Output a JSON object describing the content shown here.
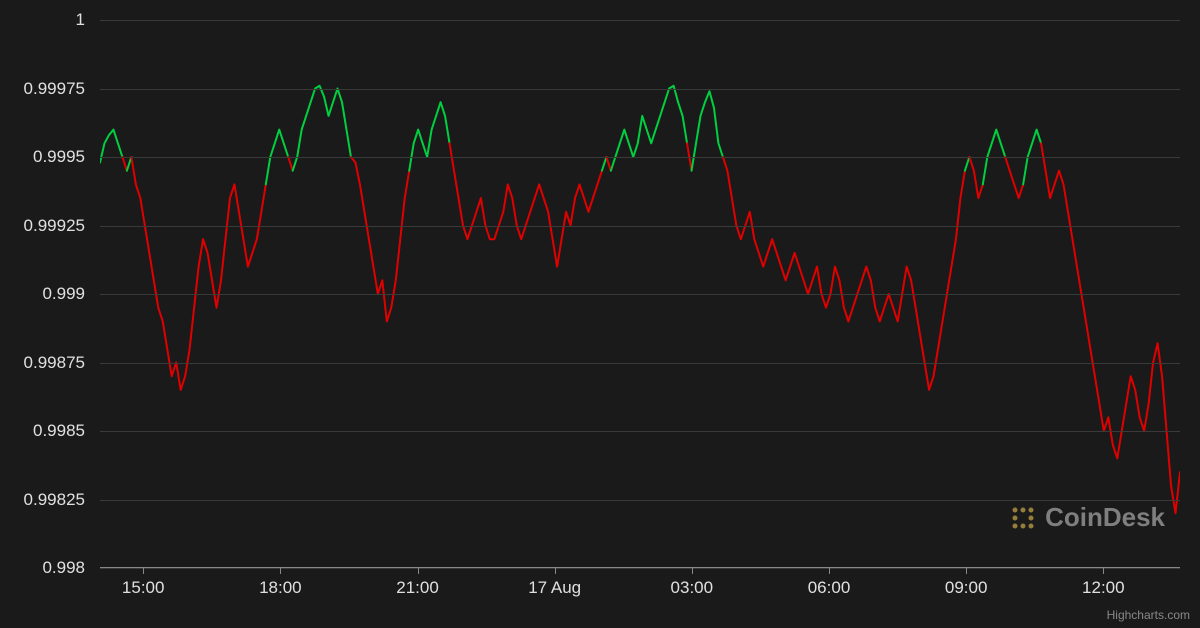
{
  "chart": {
    "type": "line",
    "background_color": "#1a1a1a",
    "grid_color": "#3a3a3a",
    "axis_text_color": "#e0e0e0",
    "axis_fontsize": 17,
    "up_color": "#00d040",
    "down_color": "#e00000",
    "line_width": 2,
    "ylim": [
      0.998,
      1.0
    ],
    "ytick_step": 0.00025,
    "y_ticks": [
      "1",
      "0.99975",
      "0.9995",
      "0.99925",
      "0.999",
      "0.99875",
      "0.9985",
      "0.99825",
      "0.998"
    ],
    "x_ticks": [
      {
        "pos": 0.04,
        "label": "15:00"
      },
      {
        "pos": 0.167,
        "label": "18:00"
      },
      {
        "pos": 0.294,
        "label": "21:00"
      },
      {
        "pos": 0.421,
        "label": "17 Aug"
      },
      {
        "pos": 0.548,
        "label": "03:00"
      },
      {
        "pos": 0.675,
        "label": "06:00"
      },
      {
        "pos": 0.802,
        "label": "09:00"
      },
      {
        "pos": 0.929,
        "label": "12:00"
      }
    ],
    "threshold": 0.9995,
    "series": [
      0.99948,
      0.99955,
      0.99958,
      0.9996,
      0.99955,
      0.9995,
      0.99945,
      0.9995,
      0.9994,
      0.99935,
      0.99925,
      0.99915,
      0.99905,
      0.99895,
      0.9989,
      0.9988,
      0.9987,
      0.99875,
      0.99865,
      0.9987,
      0.9988,
      0.99895,
      0.9991,
      0.9992,
      0.99915,
      0.99905,
      0.99895,
      0.99905,
      0.9992,
      0.99935,
      0.9994,
      0.9993,
      0.9992,
      0.9991,
      0.99915,
      0.9992,
      0.9993,
      0.9994,
      0.9995,
      0.99955,
      0.9996,
      0.99955,
      0.9995,
      0.99945,
      0.9995,
      0.9996,
      0.99965,
      0.9997,
      0.99975,
      0.99976,
      0.99972,
      0.99965,
      0.9997,
      0.99975,
      0.9997,
      0.9996,
      0.9995,
      0.99948,
      0.9994,
      0.9993,
      0.9992,
      0.9991,
      0.999,
      0.99905,
      0.9989,
      0.99895,
      0.99905,
      0.9992,
      0.99935,
      0.99945,
      0.99955,
      0.9996,
      0.99955,
      0.9995,
      0.9996,
      0.99965,
      0.9997,
      0.99965,
      0.99955,
      0.99945,
      0.99935,
      0.99925,
      0.9992,
      0.99925,
      0.9993,
      0.99935,
      0.99925,
      0.9992,
      0.9992,
      0.99925,
      0.9993,
      0.9994,
      0.99935,
      0.99925,
      0.9992,
      0.99925,
      0.9993,
      0.99935,
      0.9994,
      0.99935,
      0.9993,
      0.9992,
      0.9991,
      0.9992,
      0.9993,
      0.99925,
      0.99935,
      0.9994,
      0.99935,
      0.9993,
      0.99935,
      0.9994,
      0.99945,
      0.9995,
      0.99945,
      0.9995,
      0.99955,
      0.9996,
      0.99955,
      0.9995,
      0.99955,
      0.99965,
      0.9996,
      0.99955,
      0.9996,
      0.99965,
      0.9997,
      0.99975,
      0.99976,
      0.9997,
      0.99965,
      0.99955,
      0.99945,
      0.99955,
      0.99965,
      0.9997,
      0.99974,
      0.99968,
      0.99955,
      0.9995,
      0.99945,
      0.99935,
      0.99925,
      0.9992,
      0.99925,
      0.9993,
      0.9992,
      0.99915,
      0.9991,
      0.99915,
      0.9992,
      0.99915,
      0.9991,
      0.99905,
      0.9991,
      0.99915,
      0.9991,
      0.99905,
      0.999,
      0.99905,
      0.9991,
      0.999,
      0.99895,
      0.999,
      0.9991,
      0.99905,
      0.99895,
      0.9989,
      0.99895,
      0.999,
      0.99905,
      0.9991,
      0.99905,
      0.99895,
      0.9989,
      0.99895,
      0.999,
      0.99895,
      0.9989,
      0.999,
      0.9991,
      0.99905,
      0.99895,
      0.99885,
      0.99875,
      0.99865,
      0.9987,
      0.9988,
      0.9989,
      0.999,
      0.9991,
      0.9992,
      0.99935,
      0.99945,
      0.9995,
      0.99945,
      0.99935,
      0.9994,
      0.9995,
      0.99955,
      0.9996,
      0.99955,
      0.9995,
      0.99945,
      0.9994,
      0.99935,
      0.9994,
      0.9995,
      0.99955,
      0.9996,
      0.99955,
      0.99945,
      0.99935,
      0.9994,
      0.99945,
      0.9994,
      0.9993,
      0.9992,
      0.9991,
      0.999,
      0.9989,
      0.9988,
      0.9987,
      0.9986,
      0.9985,
      0.99855,
      0.99845,
      0.9984,
      0.9985,
      0.9986,
      0.9987,
      0.99865,
      0.99855,
      0.9985,
      0.9986,
      0.99875,
      0.99882,
      0.9987,
      0.9985,
      0.9983,
      0.9982,
      0.99835
    ]
  },
  "watermark": {
    "text": "CoinDesk",
    "icon_color": "#c9a84a",
    "text_color": "#aaaaaa"
  },
  "credit": "Highcharts.com"
}
